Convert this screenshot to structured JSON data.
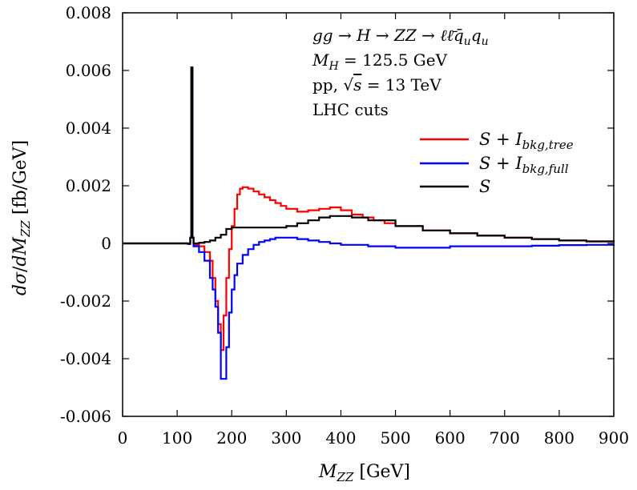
{
  "chart_data": {
    "type": "line",
    "xlabel": "M_ZZ [GeV]",
    "ylabel": "dσ/dM_ZZ [fb/GeV]",
    "xlim": [
      0,
      900
    ],
    "ylim": [
      -0.006,
      0.008
    ],
    "x_ticks": [
      "0",
      "100",
      "200",
      "300",
      "400",
      "500",
      "600",
      "700",
      "800",
      "900"
    ],
    "y_ticks": [
      "-0.006",
      "-0.004",
      "-0.002",
      "0",
      "0.002",
      "0.004",
      "0.006",
      "0.008"
    ],
    "x_tick_values": [
      0,
      100,
      200,
      300,
      400,
      500,
      600,
      700,
      800,
      900
    ],
    "y_tick_values": [
      -0.006,
      -0.004,
      -0.002,
      0,
      0.002,
      0.004,
      0.006,
      0.008
    ],
    "grid": false,
    "legend_position": "right",
    "annotations": [
      "gg → H → ZZ → ℓℓ̄q̄ᵤqᵤ",
      "M_H = 125.5 GeV",
      "pp, √s = 13 TeV",
      "LHC cuts"
    ],
    "series": [
      {
        "name": "S + I_bkg,tree",
        "color": "#ff0000",
        "x": [
          0,
          100,
          120,
          124,
          126,
          128,
          130,
          140,
          150,
          160,
          165,
          170,
          175,
          180,
          185,
          190,
          195,
          200,
          205,
          210,
          215,
          220,
          230,
          240,
          250,
          260,
          270,
          280,
          290,
          300,
          320,
          340,
          360,
          380,
          400,
          420,
          440,
          460,
          480,
          500,
          550,
          600,
          650,
          700,
          750,
          800,
          850,
          900
        ],
        "y": [
          0,
          0,
          -2e-05,
          0.0002,
          0.0061,
          0.0002,
          -5e-05,
          -0.0001,
          -0.0003,
          -0.0006,
          -0.0012,
          -0.002,
          -0.0028,
          -0.0037,
          -0.0025,
          -0.0012,
          -0.0002,
          0.0006,
          0.0012,
          0.0017,
          0.0019,
          0.00195,
          0.0019,
          0.0018,
          0.0017,
          0.0016,
          0.0015,
          0.0014,
          0.0013,
          0.0012,
          0.0011,
          0.00115,
          0.0012,
          0.00125,
          0.00115,
          0.001,
          0.0009,
          0.0008,
          0.0007,
          0.0006,
          0.00045,
          0.00035,
          0.00027,
          0.0002,
          0.00015,
          0.0001,
          7e-05,
          5e-05
        ]
      },
      {
        "name": "S + I_bkg,full",
        "color": "#0000ff",
        "x": [
          0,
          100,
          120,
          124,
          126,
          128,
          130,
          140,
          150,
          160,
          165,
          170,
          175,
          180,
          185,
          190,
          195,
          200,
          205,
          210,
          220,
          230,
          240,
          250,
          260,
          270,
          280,
          290,
          300,
          320,
          340,
          360,
          380,
          400,
          450,
          500,
          550,
          600,
          650,
          700,
          750,
          800,
          850,
          900
        ],
        "y": [
          0,
          0,
          -2e-05,
          0.0002,
          0.0061,
          0.0002,
          -0.0001,
          -0.0003,
          -0.0006,
          -0.0012,
          -0.0016,
          -0.0022,
          -0.0031,
          -0.0047,
          -0.0047,
          -0.0036,
          -0.0024,
          -0.0016,
          -0.0011,
          -0.0007,
          -0.0004,
          -0.0002,
          -5e-05,
          5e-05,
          0.0001,
          0.00015,
          0.0002,
          0.0002,
          0.0002,
          0.00015,
          0.0001,
          5e-05,
          0.0,
          -5e-05,
          -0.0001,
          -0.00015,
          -0.00015,
          -0.0001,
          -0.0001,
          -0.0001,
          -8e-05,
          -6e-05,
          -5e-05,
          -3e-05
        ]
      },
      {
        "name": "S",
        "color": "#000000",
        "x": [
          0,
          100,
          120,
          124,
          126,
          128,
          130,
          140,
          150,
          160,
          170,
          180,
          190,
          200,
          220,
          250,
          280,
          300,
          320,
          340,
          360,
          380,
          400,
          420,
          450,
          500,
          550,
          600,
          650,
          700,
          750,
          800,
          850,
          900
        ],
        "y": [
          0,
          0,
          0,
          0.0002,
          0.0061,
          0.0002,
          0,
          2e-05,
          5e-05,
          0.0001,
          0.0002,
          0.0003,
          0.0005,
          0.00055,
          0.00055,
          0.00055,
          0.00055,
          0.0006,
          0.0007,
          0.0008,
          0.0009,
          0.00095,
          0.00095,
          0.0009,
          0.0008,
          0.0006,
          0.00045,
          0.00035,
          0.00027,
          0.0002,
          0.00015,
          0.0001,
          7e-05,
          5e-05
        ]
      }
    ]
  }
}
